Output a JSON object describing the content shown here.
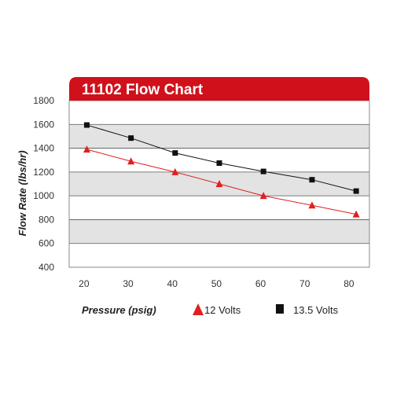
{
  "chart_data": {
    "type": "line",
    "title": "11102 Flow Chart",
    "xlabel": "Pressure (psig)",
    "ylabel": "Flow Rate (lbs/hr)",
    "xticks": [
      20,
      30,
      40,
      50,
      60,
      70,
      80
    ],
    "yticks": [
      400,
      600,
      800,
      1000,
      1200,
      1400,
      1600,
      1800
    ],
    "xlim": [
      17,
      85
    ],
    "ylim": [
      400,
      1800
    ],
    "grid": "horizontal",
    "legend": "bottom",
    "colors": {
      "title_bar": "#d0111b",
      "band": "#e3e3e3",
      "series_12": "#e02020",
      "series_135": "#111111"
    },
    "series": [
      {
        "name": "12 Volts",
        "marker": "triangle",
        "x": [
          21,
          31,
          41,
          51,
          61,
          72,
          82
        ],
        "y": [
          1390,
          1290,
          1200,
          1100,
          1000,
          920,
          845
        ]
      },
      {
        "name": "13.5 Volts",
        "marker": "square",
        "x": [
          21,
          31,
          41,
          51,
          61,
          72,
          82
        ],
        "y": [
          1595,
          1485,
          1360,
          1275,
          1205,
          1135,
          1040
        ]
      }
    ]
  }
}
